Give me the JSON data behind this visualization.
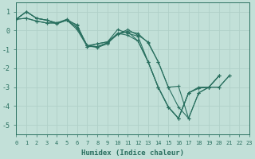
{
  "xlabel": "Humidex (Indice chaleur)",
  "ylabel": "",
  "bg_color": "#c2e0d8",
  "line_color": "#2a7060",
  "grid_color": "#b0d0c8",
  "x_data": [
    0,
    1,
    2,
    3,
    4,
    5,
    6,
    7,
    8,
    9,
    10,
    11,
    12,
    13,
    14,
    15,
    16,
    17,
    18,
    19,
    20,
    21,
    22,
    23
  ],
  "lines": [
    [
      0.6,
      1.0,
      0.65,
      0.55,
      0.4,
      0.55,
      0.15,
      -0.8,
      -0.9,
      -0.7,
      -0.15,
      -0.05,
      -0.15,
      -0.65,
      -1.65,
      -3.0,
      -4.05,
      -4.65,
      -3.3,
      -3.0,
      -3.0,
      -2.4,
      null,
      null
    ],
    [
      0.6,
      1.0,
      0.65,
      0.55,
      0.4,
      0.55,
      0.15,
      -0.8,
      -0.85,
      -0.65,
      -0.2,
      -0.05,
      -0.55,
      -1.65,
      -3.0,
      -4.05,
      -4.65,
      -3.3,
      -3.05,
      -3.0,
      -2.4,
      null,
      null,
      null
    ],
    [
      0.6,
      0.65,
      0.5,
      0.4,
      0.4,
      0.55,
      0.3,
      -0.85,
      -0.7,
      -0.6,
      0.05,
      -0.15,
      -0.3,
      -1.65,
      -3.0,
      -4.05,
      -4.65,
      -3.3,
      -3.05,
      -3.0,
      -2.4,
      null,
      null,
      null
    ],
    [
      0.6,
      0.65,
      0.5,
      0.4,
      0.4,
      0.6,
      0.25,
      -0.8,
      -0.7,
      -0.6,
      -0.15,
      -0.25,
      -0.55,
      -1.65,
      -3.0,
      -4.05,
      -4.65,
      -3.3,
      -3.0,
      -3.0,
      -2.4,
      null,
      null,
      null
    ],
    [
      0.6,
      1.0,
      0.65,
      0.55,
      0.35,
      0.55,
      0.05,
      -0.85,
      -0.85,
      -0.65,
      -0.2,
      0.05,
      -0.25,
      -0.6,
      -1.65,
      -3.0,
      -2.95,
      -4.65,
      -3.3,
      -3.0,
      -3.0,
      -2.4,
      null,
      null
    ]
  ],
  "xlim": [
    0,
    23
  ],
  "ylim": [
    -5.5,
    1.5
  ],
  "yticks": [
    1,
    0,
    -1,
    -2,
    -3,
    -4,
    -5
  ],
  "xticks": [
    0,
    1,
    2,
    3,
    4,
    5,
    6,
    7,
    8,
    9,
    10,
    11,
    12,
    13,
    14,
    15,
    16,
    17,
    18,
    19,
    20,
    21,
    22,
    23
  ]
}
